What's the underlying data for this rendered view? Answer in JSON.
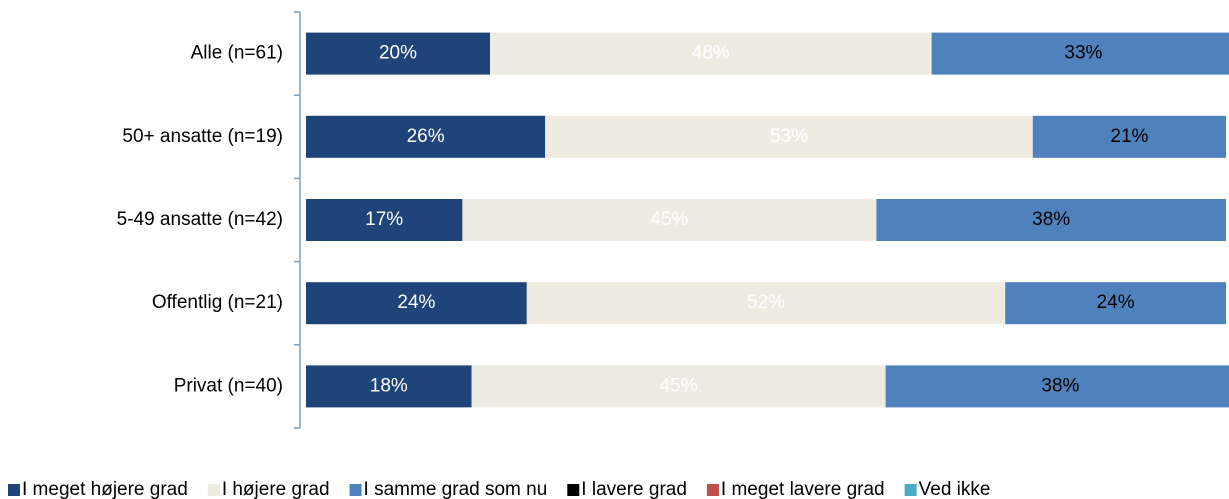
{
  "chart_data": {
    "type": "stacked-barh",
    "categories": [
      "Alle (n=61)",
      "50+ ansatte (n=19)",
      "5-49 ansatte (n=42)",
      "Offentlig (n=21)",
      "Privat (n=40)"
    ],
    "xlim": [
      0,
      100
    ],
    "legend": "bottom",
    "series": [
      {
        "name": "I meget højere grad",
        "color": "#1f4479",
        "label_color": "#ffffff",
        "values": [
          20,
          26,
          17,
          24,
          18
        ],
        "value_labels": [
          "20%",
          "26%",
          "17%",
          "24%",
          "18%"
        ]
      },
      {
        "name": "I højere grad",
        "color": "#eeece1",
        "label_color": "#ffffff",
        "values": [
          48,
          53,
          45,
          52,
          45
        ],
        "value_labels": [
          "48%",
          "53%",
          "45%",
          "52%",
          "45%"
        ]
      },
      {
        "name": "I samme grad som nu",
        "color": "#4f81bd",
        "label_color": "#000000",
        "values": [
          33,
          21,
          38,
          24,
          38
        ],
        "value_labels": [
          "33%",
          "21%",
          "38%",
          "24%",
          "38%"
        ]
      },
      {
        "name": "I lavere grad",
        "color": "#000000",
        "values": [
          0,
          0,
          0,
          0,
          0
        ]
      },
      {
        "name": "I meget lavere grad",
        "color": "#c0504d",
        "values": [
          0,
          0,
          0,
          0,
          0
        ]
      },
      {
        "name": "Ved ikke",
        "color": "#4bacc6",
        "values": [
          0,
          0,
          0,
          0,
          0
        ]
      }
    ]
  }
}
